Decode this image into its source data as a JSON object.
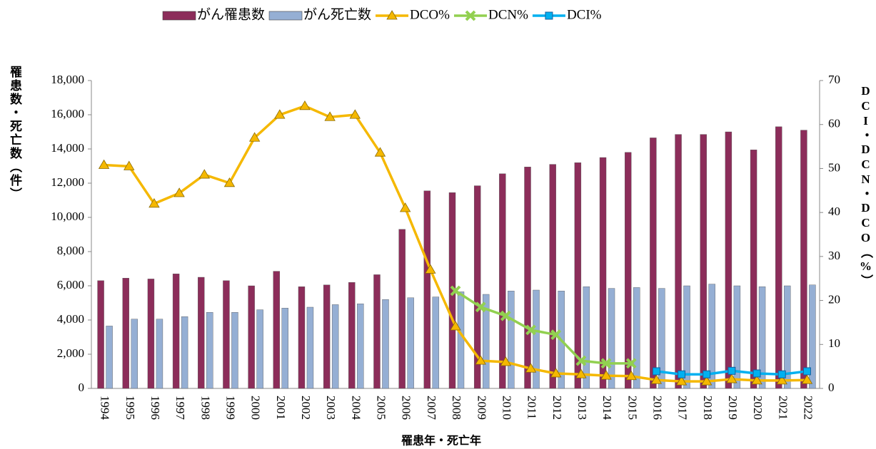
{
  "chart_data": {
    "type": "bar",
    "x_label": "罹患年・死亡年",
    "y_label": "罹患数・死亡数（件）",
    "y2_label": "DCI・DCN・DCO（%）",
    "categories": [
      "1994",
      "1995",
      "1996",
      "1997",
      "1998",
      "1999",
      "2000",
      "2001",
      "2002",
      "2003",
      "2004",
      "2005",
      "2006",
      "2007",
      "2008",
      "2009",
      "2010",
      "2011",
      "2012",
      "2013",
      "2014",
      "2015",
      "2016",
      "2017",
      "2018",
      "2019",
      "2020",
      "2021",
      "2022"
    ],
    "series": [
      {
        "name": "がん罹患数",
        "type": "bar",
        "color": "#8c2d5a",
        "values": [
          6300,
          6450,
          6400,
          6700,
          6500,
          6300,
          6000,
          6850,
          5950,
          6050,
          6200,
          6650,
          9300,
          11550,
          11450,
          11850,
          12550,
          12950,
          13100,
          13200,
          13500,
          13800,
          14650,
          14850,
          14850,
          15000,
          13950,
          15300,
          15100
        ]
      },
      {
        "name": "がん死亡数",
        "type": "bar",
        "color": "#95afd4",
        "values": [
          3650,
          4050,
          4050,
          4200,
          4450,
          4450,
          4600,
          4700,
          4750,
          4900,
          4950,
          5200,
          5300,
          5350,
          5650,
          5500,
          5700,
          5750,
          5700,
          5950,
          5850,
          5900,
          5850,
          6000,
          6100,
          6000,
          5950,
          6000,
          6050
        ]
      },
      {
        "name": "DCO%",
        "type": "line",
        "axis": "y2",
        "marker": "triangle",
        "color": "#f5b800",
        "values": [
          50.8,
          50.5,
          42,
          44.4,
          48.6,
          46.7,
          57,
          62.2,
          64.2,
          61.7,
          62.2,
          53.6,
          41,
          27,
          14.1,
          6.3,
          6,
          4.5,
          3.4,
          3.2,
          2.9,
          2.8,
          1.9,
          1.6,
          1.6,
          2.1,
          1.8,
          1.8,
          1.9
        ]
      },
      {
        "name": "DCN%",
        "type": "line",
        "axis": "y2",
        "marker": "x",
        "color": "#92d050",
        "values": [
          null,
          null,
          null,
          null,
          null,
          null,
          null,
          null,
          null,
          null,
          null,
          null,
          null,
          null,
          22.2,
          18.5,
          16.5,
          13.3,
          12.2,
          6.3,
          5.7,
          5.7,
          null,
          null,
          null,
          null,
          null,
          null,
          null
        ]
      },
      {
        "name": "DCI%",
        "type": "line",
        "axis": "y2",
        "marker": "square",
        "color": "#00b0f0",
        "values": [
          null,
          null,
          null,
          null,
          null,
          null,
          null,
          null,
          null,
          null,
          null,
          null,
          null,
          null,
          null,
          null,
          null,
          null,
          null,
          null,
          null,
          null,
          3.9,
          3.2,
          3.2,
          4,
          3.4,
          3.2,
          3.9
        ]
      }
    ],
    "ylim": [
      0,
      18000
    ],
    "yticks": [
      0,
      {
        "value": 2000,
        "label": "2,000"
      },
      {
        "value": 4000,
        "label": "4,000"
      },
      {
        "value": 6000,
        "label": "6,000"
      },
      {
        "value": 8000,
        "label": "8,000"
      },
      {
        "value": 10000,
        "label": "10,000"
      },
      {
        "value": 12000,
        "label": "12,000"
      },
      {
        "value": 14000,
        "label": "14,000"
      },
      {
        "value": 16000,
        "label": "16,000"
      },
      {
        "value": 18000,
        "label": "18,000"
      }
    ],
    "y2lim": [
      0,
      70
    ],
    "y2ticks": [
      0,
      10,
      20,
      30,
      40,
      50,
      60,
      70
    ],
    "legend": "top"
  }
}
